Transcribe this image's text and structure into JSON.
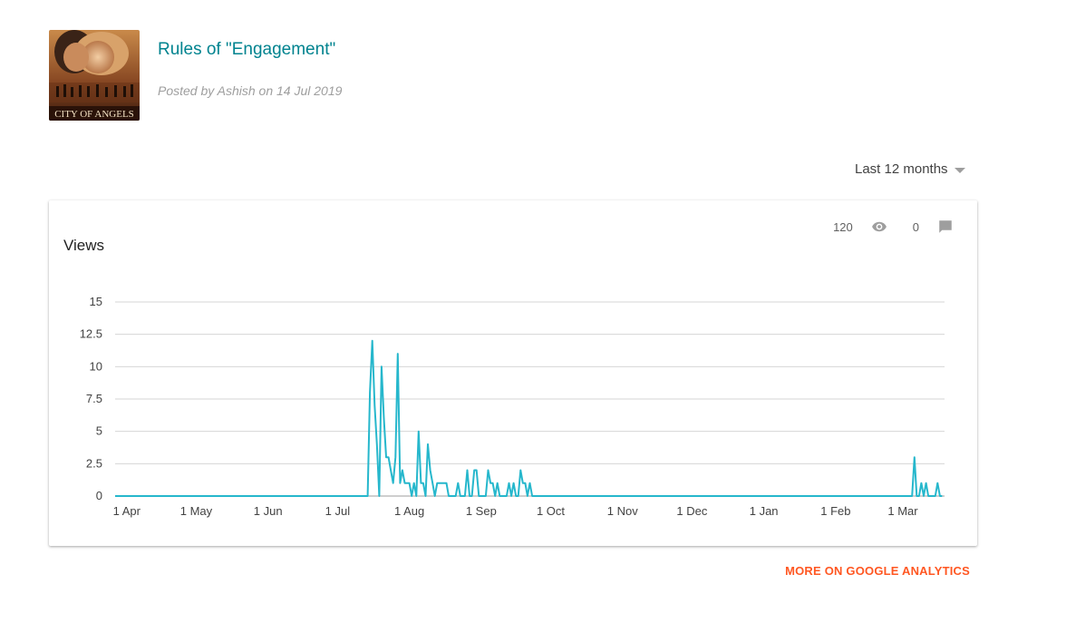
{
  "post": {
    "thumbnail_caption": "CITY OF ANGELS",
    "title": "Rules of \"Engagement\"",
    "meta": "Posted by Ashish on 14 Jul 2019"
  },
  "range": {
    "selected": "Last 12 months"
  },
  "card": {
    "title": "Views",
    "views_count": "120",
    "comments_count": "0",
    "view_icon": "eye-icon",
    "comment_icon": "comment-icon"
  },
  "footer": {
    "ga_link": "MORE ON GOOGLE ANALYTICS"
  },
  "colors": {
    "line": "#26b7cc",
    "accent_link": "#ff5722",
    "title": "#00838f"
  },
  "chart_data": {
    "type": "line",
    "xlabel": "",
    "ylabel": "",
    "ylim": [
      0,
      15
    ],
    "yticks": [
      "0",
      "2.5",
      "5",
      "7.5",
      "10",
      "12.5",
      "15"
    ],
    "xticks": [
      "1 Apr",
      "1 May",
      "1 Jun",
      "1 Jul",
      "1 Aug",
      "1 Sep",
      "1 Oct",
      "1 Nov",
      "1 Dec",
      "1 Jan",
      "1 Feb",
      "1 Mar"
    ],
    "grid": true,
    "series": [
      {
        "color": "#26b7cc",
        "points": [
          [
            "2019-03-27",
            0
          ],
          [
            "2019-07-14",
            0
          ],
          [
            "2019-07-15",
            8
          ],
          [
            "2019-07-16",
            12
          ],
          [
            "2019-07-17",
            7
          ],
          [
            "2019-07-18",
            4
          ],
          [
            "2019-07-19",
            0
          ],
          [
            "2019-07-20",
            10
          ],
          [
            "2019-07-21",
            6
          ],
          [
            "2019-07-22",
            3
          ],
          [
            "2019-07-23",
            3
          ],
          [
            "2019-07-24",
            2
          ],
          [
            "2019-07-25",
            1
          ],
          [
            "2019-07-26",
            3
          ],
          [
            "2019-07-27",
            11
          ],
          [
            "2019-07-28",
            1
          ],
          [
            "2019-07-29",
            2
          ],
          [
            "2019-07-30",
            1
          ],
          [
            "2019-07-31",
            1
          ],
          [
            "2019-08-01",
            1
          ],
          [
            "2019-08-02",
            0
          ],
          [
            "2019-08-03",
            1
          ],
          [
            "2019-08-04",
            0
          ],
          [
            "2019-08-05",
            5
          ],
          [
            "2019-08-06",
            1
          ],
          [
            "2019-08-07",
            1
          ],
          [
            "2019-08-08",
            0
          ],
          [
            "2019-08-09",
            4
          ],
          [
            "2019-08-10",
            2
          ],
          [
            "2019-08-11",
            1
          ],
          [
            "2019-08-12",
            0
          ],
          [
            "2019-08-13",
            1
          ],
          [
            "2019-08-14",
            1
          ],
          [
            "2019-08-15",
            1
          ],
          [
            "2019-08-16",
            1
          ],
          [
            "2019-08-17",
            1
          ],
          [
            "2019-08-18",
            0
          ],
          [
            "2019-08-19",
            0
          ],
          [
            "2019-08-20",
            0
          ],
          [
            "2019-08-21",
            0
          ],
          [
            "2019-08-22",
            1
          ],
          [
            "2019-08-23",
            0
          ],
          [
            "2019-08-24",
            0
          ],
          [
            "2019-08-25",
            0
          ],
          [
            "2019-08-26",
            2
          ],
          [
            "2019-08-27",
            0
          ],
          [
            "2019-08-28",
            0
          ],
          [
            "2019-08-29",
            2
          ],
          [
            "2019-08-30",
            2
          ],
          [
            "2019-08-31",
            0
          ],
          [
            "2019-09-01",
            0
          ],
          [
            "2019-09-02",
            0
          ],
          [
            "2019-09-03",
            0
          ],
          [
            "2019-09-04",
            2
          ],
          [
            "2019-09-05",
            1
          ],
          [
            "2019-09-06",
            1
          ],
          [
            "2019-09-07",
            0
          ],
          [
            "2019-09-08",
            1
          ],
          [
            "2019-09-09",
            0
          ],
          [
            "2019-09-10",
            0
          ],
          [
            "2019-09-11",
            0
          ],
          [
            "2019-09-12",
            0
          ],
          [
            "2019-09-13",
            1
          ],
          [
            "2019-09-14",
            0
          ],
          [
            "2019-09-15",
            1
          ],
          [
            "2019-09-16",
            0
          ],
          [
            "2019-09-17",
            0
          ],
          [
            "2019-09-18",
            2
          ],
          [
            "2019-09-19",
            1
          ],
          [
            "2019-09-20",
            1
          ],
          [
            "2019-09-21",
            0
          ],
          [
            "2019-09-22",
            1
          ],
          [
            "2019-09-23",
            0
          ],
          [
            "2020-03-05",
            0
          ],
          [
            "2020-03-06",
            3
          ],
          [
            "2020-03-07",
            0
          ],
          [
            "2020-03-08",
            0
          ],
          [
            "2020-03-09",
            1
          ],
          [
            "2020-03-10",
            0
          ],
          [
            "2020-03-11",
            1
          ],
          [
            "2020-03-12",
            0
          ],
          [
            "2020-03-13",
            0
          ],
          [
            "2020-03-14",
            0
          ],
          [
            "2020-03-15",
            0
          ],
          [
            "2020-03-16",
            1
          ],
          [
            "2020-03-17",
            0
          ],
          [
            "2020-03-18",
            0
          ]
        ]
      }
    ]
  }
}
